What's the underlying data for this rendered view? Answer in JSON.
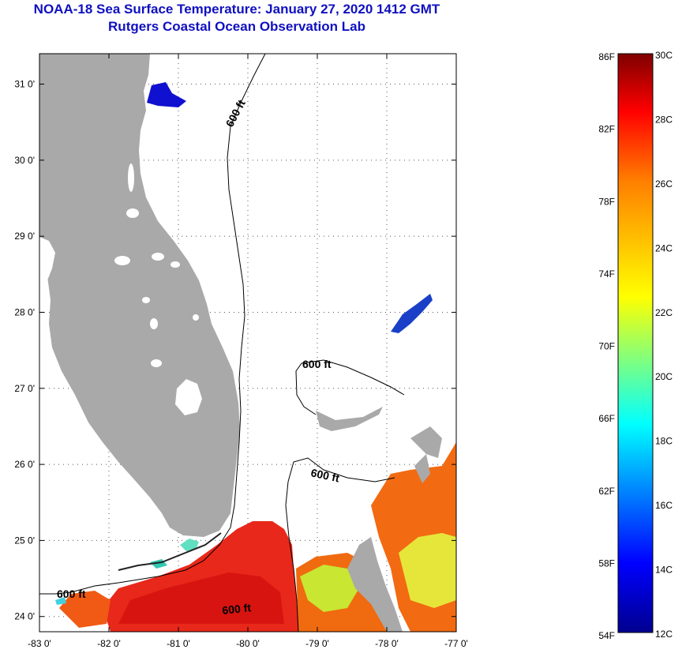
{
  "title": "NOAA-18 Sea Surface Temperature:  January 27, 2020 1412 GMT",
  "subtitle": "Rutgers Coastal Ocean Observation Lab",
  "map": {
    "lon_range": [
      -83,
      -77
    ],
    "lat_range": [
      23.8,
      31.4
    ],
    "lon_ticks": [
      "-83 0'",
      "-82 0'",
      "-81 0'",
      "-80 0'",
      "-79 0'",
      "-78 0'",
      "-77 0'"
    ],
    "lat_ticks": [
      "24 0'",
      "25 0'",
      "26 0'",
      "27 0'",
      "28 0'",
      "29 0'",
      "30 0'",
      "31 0'"
    ],
    "contour_label": "600 ft",
    "land_color": "#a9a9a9"
  },
  "colorbar": {
    "fahrenheit_labels": [
      "86F",
      "82F",
      "78F",
      "74F",
      "70F",
      "66F",
      "62F",
      "58F",
      "54F"
    ],
    "celsius_labels": [
      "30C",
      "28C",
      "26C",
      "24C",
      "22C",
      "20C",
      "18C",
      "16C",
      "14C",
      "12C"
    ],
    "min_c": 12,
    "max_c": 30
  }
}
